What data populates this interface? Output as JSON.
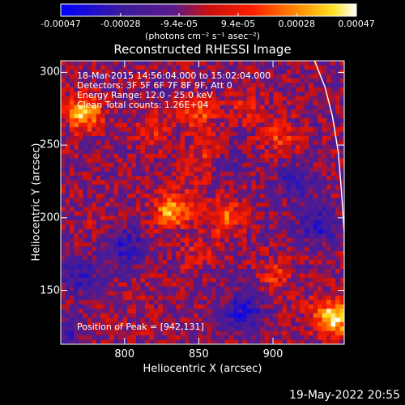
{
  "chart_data": {
    "type": "heatmap",
    "title": "Reconstructed RHESSI Image",
    "xlabel": "Heliocentric X (arcsec)",
    "ylabel": "Heliocentric Y (arcsec)",
    "xlim": [
      757,
      948
    ],
    "ylim": [
      113,
      308
    ],
    "x_ticks": [
      800,
      850,
      900
    ],
    "y_ticks": [
      150,
      200,
      250,
      300
    ],
    "colorbar": {
      "ticks": [
        "-0.00047",
        "-0.00028",
        "-9.4e-05",
        "9.4e-05",
        "0.00028",
        "0.00047"
      ],
      "tick_values": [
        -0.00047,
        -0.00028,
        -9.4e-05,
        9.4e-05,
        0.00028,
        0.00047
      ],
      "range": [
        -0.00047,
        0.00047
      ],
      "units": "(photons cm⁻² s⁻¹ asec⁻²)",
      "colormap": "blue-purple-red-orange-yellow-white"
    },
    "annotations": [
      "18-Mar-2015 14:56:04.000 to 15:02:04.000",
      "Detectors: 3F 5F 6F 7F 8F 9F, Att 0",
      "Energy Range: 12.0 - 25.0 keV",
      "Clean     Total counts: 1.26E+04"
    ],
    "peak_label": "Position of Peak = [942,131]",
    "peak_position": [
      942,
      131
    ],
    "limb_curve_xy": [
      [
        928,
        308
      ],
      [
        935,
        290
      ],
      [
        940,
        270
      ],
      [
        944,
        245
      ],
      [
        946,
        220
      ],
      [
        948,
        190
      ],
      [
        948,
        175
      ]
    ],
    "hot_regions": [
      {
        "x": 773,
        "y": 272,
        "level": 0.92
      },
      {
        "x": 850,
        "y": 272,
        "level": 0.7
      },
      {
        "x": 855,
        "y": 245,
        "level": 0.65
      },
      {
        "x": 820,
        "y": 260,
        "level": 0.62
      },
      {
        "x": 845,
        "y": 225,
        "level": 0.55
      },
      {
        "x": 832,
        "y": 205,
        "level": 0.88
      },
      {
        "x": 868,
        "y": 200,
        "level": 0.75
      },
      {
        "x": 850,
        "y": 175,
        "level": 0.6
      },
      {
        "x": 880,
        "y": 275,
        "level": 0.6
      },
      {
        "x": 905,
        "y": 255,
        "level": 0.66
      },
      {
        "x": 902,
        "y": 160,
        "level": 0.65
      },
      {
        "x": 925,
        "y": 138,
        "level": 0.55
      },
      {
        "x": 942,
        "y": 131,
        "level": 0.98
      },
      {
        "x": 780,
        "y": 200,
        "level": 0.5
      },
      {
        "x": 790,
        "y": 128,
        "level": 0.55
      },
      {
        "x": 810,
        "y": 150,
        "level": 0.5
      },
      {
        "x": 890,
        "y": 215,
        "level": 0.45
      }
    ],
    "cold_regions": [
      {
        "x": 800,
        "y": 180,
        "level": 0.7
      },
      {
        "x": 770,
        "y": 160,
        "level": 0.6
      },
      {
        "x": 880,
        "y": 135,
        "level": 0.8
      },
      {
        "x": 930,
        "y": 195,
        "level": 0.7
      },
      {
        "x": 915,
        "y": 225,
        "level": 0.5
      },
      {
        "x": 760,
        "y": 120,
        "level": 0.5
      },
      {
        "x": 870,
        "y": 240,
        "level": 0.35
      }
    ]
  },
  "footer": {
    "date": "19-May-2022 20:55"
  },
  "colors": {
    "background": "#000000",
    "foreground": "#ffffff",
    "limb_line": "#ffffff"
  }
}
